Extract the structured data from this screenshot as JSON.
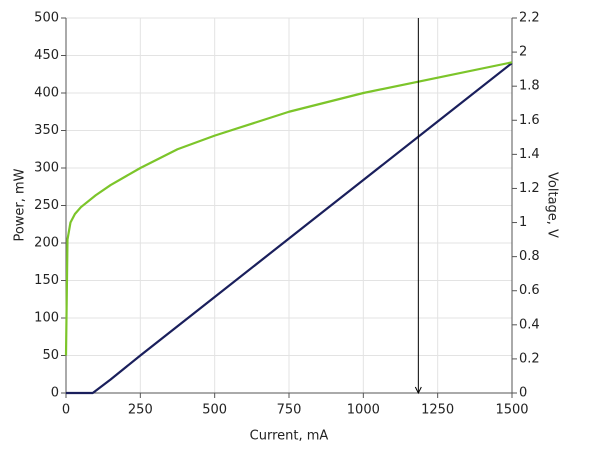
{
  "chart_data": {
    "type": "line",
    "x_label": "Current, mA",
    "y_label": "Power, mW",
    "y2_label": "Voltage, V",
    "xlim": [
      0,
      1500
    ],
    "xticks": [
      0,
      250,
      500,
      750,
      1000,
      1250,
      1500
    ],
    "ylim": [
      0,
      500
    ],
    "yticks": [
      0,
      50,
      100,
      150,
      200,
      250,
      300,
      350,
      400,
      450,
      500
    ],
    "y2lim": [
      0,
      2.2
    ],
    "y2ticks": [
      0,
      0.2,
      0.4,
      0.6,
      0.8,
      1,
      1.2,
      1.4,
      1.6,
      1.8,
      2,
      2.2
    ],
    "grid": true,
    "marker_x": 1185,
    "series": [
      {
        "name": "Power",
        "color": "#1a1f5c",
        "x": [
          0,
          90,
          150,
          250,
          500,
          750,
          1000,
          1250,
          1500
        ],
        "values": [
          0,
          0,
          18,
          50,
          128,
          206,
          284,
          362,
          440
        ]
      },
      {
        "name": "Voltage",
        "color": "#7cc52a",
        "axis": "y2",
        "x": [
          0,
          5,
          15,
          30,
          50,
          100,
          150,
          250,
          375,
          500,
          750,
          1000,
          1250,
          1500
        ],
        "values": [
          0.22,
          0.9,
          1.0,
          1.05,
          1.09,
          1.16,
          1.22,
          1.32,
          1.43,
          1.51,
          1.65,
          1.76,
          1.85,
          1.94
        ]
      }
    ]
  }
}
